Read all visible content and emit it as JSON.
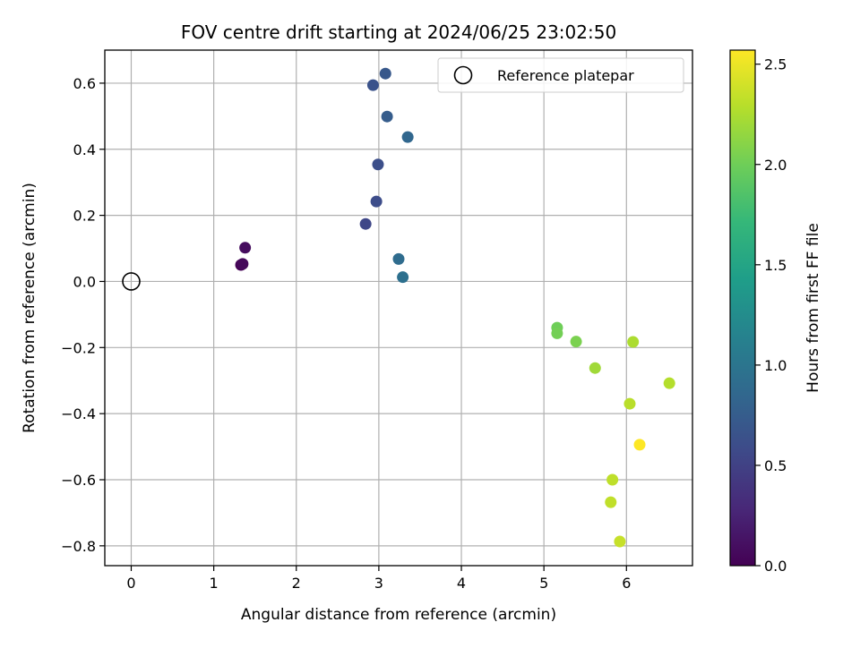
{
  "chart_data": {
    "type": "scatter",
    "title": "FOV centre drift starting at 2024/06/25 23:02:50",
    "xlabel": "Angular distance from reference (arcmin)",
    "ylabel": "Rotation from reference (arcmin)",
    "xlim": [
      -0.32,
      6.8
    ],
    "ylim": [
      -0.86,
      0.7
    ],
    "xticks": [
      0,
      1,
      2,
      3,
      4,
      5,
      6
    ],
    "xtick_labels": [
      "0",
      "1",
      "2",
      "3",
      "4",
      "5",
      "6"
    ],
    "yticks": [
      -0.8,
      -0.6,
      -0.4,
      -0.2,
      0.0,
      0.2,
      0.4,
      0.6
    ],
    "ytick_labels": [
      "−0.8",
      "−0.6",
      "−0.4",
      "−0.2",
      "0.0",
      "0.2",
      "0.4",
      "0.6"
    ],
    "grid": true,
    "legend": {
      "location": "top-right",
      "label": "Reference platepar"
    },
    "reference_point": {
      "x": 0.0,
      "y": 0.0
    },
    "colormap": "viridis",
    "colorbar": {
      "label": "Hours from first FF file",
      "range": [
        0.0,
        2.57
      ],
      "ticks": [
        0.0,
        0.5,
        1.0,
        1.5,
        2.0,
        2.5
      ],
      "tick_labels": [
        "0.0",
        "0.5",
        "1.0",
        "1.5",
        "2.0",
        "2.5"
      ]
    },
    "points": [
      {
        "x": 1.33,
        "y": 0.05,
        "hours": 0.0
      },
      {
        "x": 1.35,
        "y": 0.053,
        "hours": 0.05
      },
      {
        "x": 1.38,
        "y": 0.102,
        "hours": 0.08
      },
      {
        "x": 2.84,
        "y": 0.174,
        "hours": 0.55
      },
      {
        "x": 2.97,
        "y": 0.242,
        "hours": 0.6
      },
      {
        "x": 2.99,
        "y": 0.354,
        "hours": 0.62
      },
      {
        "x": 2.93,
        "y": 0.594,
        "hours": 0.65
      },
      {
        "x": 3.08,
        "y": 0.629,
        "hours": 0.7
      },
      {
        "x": 3.1,
        "y": 0.499,
        "hours": 0.75
      },
      {
        "x": 3.35,
        "y": 0.437,
        "hours": 0.85
      },
      {
        "x": 3.24,
        "y": 0.068,
        "hours": 0.9
      },
      {
        "x": 3.29,
        "y": 0.013,
        "hours": 0.95
      },
      {
        "x": 5.16,
        "y": -0.14,
        "hours": 2.0
      },
      {
        "x": 5.16,
        "y": -0.157,
        "hours": 2.02
      },
      {
        "x": 5.39,
        "y": -0.182,
        "hours": 2.05
      },
      {
        "x": 5.62,
        "y": -0.262,
        "hours": 2.2
      },
      {
        "x": 6.08,
        "y": -0.183,
        "hours": 2.25
      },
      {
        "x": 6.52,
        "y": -0.308,
        "hours": 2.28
      },
      {
        "x": 6.04,
        "y": -0.37,
        "hours": 2.3
      },
      {
        "x": 5.83,
        "y": -0.6,
        "hours": 2.32
      },
      {
        "x": 5.81,
        "y": -0.668,
        "hours": 2.33
      },
      {
        "x": 5.92,
        "y": -0.787,
        "hours": 2.35
      },
      {
        "x": 6.16,
        "y": -0.494,
        "hours": 2.57
      }
    ]
  }
}
